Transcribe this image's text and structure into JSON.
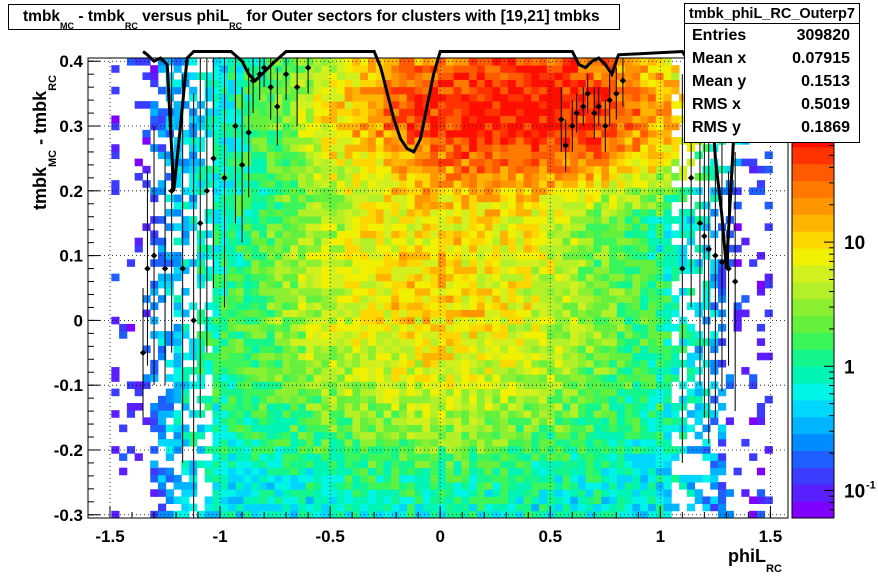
{
  "chart_data": {
    "type": "heatmap",
    "title_parts": [
      "tmbk",
      "MC",
      " - tmbk",
      "RC",
      " versus phiL",
      "RC",
      " for Outer sectors for clusters with [19,21] tmbks"
    ],
    "xlabel": "phiL",
    "xlabel_sub": "RC",
    "ylabel": "tmbk",
    "ylabel_sub1": "MC",
    "ylabel_mid": " - tmbk",
    "ylabel_sub2": "RC",
    "xlim": [
      -1.6,
      1.58
    ],
    "ylim": [
      -0.305,
      0.405
    ],
    "x_ticks": [
      "-1.5",
      "-1",
      "-0.5",
      "0",
      "0.5",
      "1",
      "1.5"
    ],
    "x_tick_values": [
      -1.5,
      -1,
      -0.5,
      0,
      0.5,
      1,
      1.5
    ],
    "y_ticks": [
      "-0.3",
      "-0.2",
      "-0.1",
      "0",
      "0.1",
      "0.2",
      "0.3",
      "0.4"
    ],
    "y_tick_values": [
      -0.3,
      -0.2,
      -0.1,
      0,
      0.1,
      0.2,
      0.3,
      0.4
    ],
    "grid": true,
    "colorbar": {
      "scale": "log",
      "labels": [
        "10",
        "1",
        "10"
      ],
      "label_values": [
        10,
        1,
        0.1
      ],
      "last_label_exponent": "-1",
      "range": [
        0.06,
        80
      ]
    },
    "stats": {
      "name": "tmbk_phiL_RC_Outerp7",
      "rows": [
        {
          "label": "Entries",
          "value": "309820"
        },
        {
          "label": "Mean x",
          "value": "0.07915"
        },
        {
          "label": "Mean y",
          "value": "0.1513"
        },
        {
          "label": "RMS x",
          "value": "0.5019"
        },
        {
          "label": "RMS y",
          "value": "0.1869"
        }
      ]
    },
    "fit_curve": {
      "x": [
        -1.35,
        -1.33,
        -1.3,
        -1.27,
        -1.24,
        -1.21,
        -1.18,
        -1.15,
        -1.12,
        -1.09,
        -0.95,
        -0.9,
        -0.87,
        -0.84,
        -0.75,
        -0.7,
        -0.3,
        -0.27,
        -0.24,
        -0.21,
        -0.18,
        -0.15,
        -0.12,
        -0.09,
        -0.06,
        -0.03,
        0,
        0.6,
        0.63,
        0.66,
        0.69,
        0.72,
        0.75,
        0.78,
        0.81,
        1.1,
        1.13,
        1.16,
        1.19,
        1.22,
        1.25,
        1.28,
        1.3,
        1.32,
        1.34,
        1.36
      ],
      "y": [
        0.42,
        0.41,
        0.4,
        0.405,
        0.395,
        0.2,
        0.3,
        0.405,
        0.42,
        0.42,
        0.42,
        0.4,
        0.38,
        0.37,
        0.4,
        0.42,
        0.42,
        0.39,
        0.35,
        0.31,
        0.28,
        0.265,
        0.26,
        0.28,
        0.33,
        0.38,
        0.42,
        0.42,
        0.395,
        0.39,
        0.4,
        0.405,
        0.395,
        0.38,
        0.41,
        0.42,
        0.4,
        0.39,
        0.41,
        0.405,
        0.25,
        0.16,
        0.08,
        0.2,
        0.33,
        0.42
      ]
    },
    "profile_points": {
      "x": [
        -1.35,
        -1.33,
        -1.3,
        -1.25,
        -1.22,
        -1.17,
        -1.12,
        -1.09,
        -1.06,
        -1.03,
        -0.98,
        -0.93,
        -0.9,
        -0.87,
        -0.85,
        -0.82,
        -0.8,
        -0.77,
        -0.74,
        -0.7,
        -0.65,
        -0.6,
        0.55,
        0.57,
        0.6,
        0.62,
        0.65,
        0.67,
        0.7,
        0.72,
        0.75,
        0.77,
        0.8,
        0.83,
        1.1,
        1.14,
        1.18,
        1.2,
        1.22,
        1.25,
        1.28,
        1.31,
        1.34
      ],
      "y": [
        -0.05,
        0.08,
        0.1,
        0.08,
        0.2,
        0.08,
        0.0,
        0.15,
        0.2,
        0.25,
        0.22,
        0.3,
        0.24,
        0.29,
        0.37,
        0.38,
        0.39,
        0.36,
        0.33,
        0.38,
        0.36,
        0.39,
        0.31,
        0.27,
        0.3,
        0.32,
        0.33,
        0.35,
        0.32,
        0.33,
        0.3,
        0.34,
        0.35,
        0.37,
        0.08,
        0.22,
        0.15,
        0.13,
        0.11,
        0.1,
        0.09,
        0.08,
        0.06
      ],
      "err": [
        0.1,
        0.15,
        0.2,
        0.18,
        0.25,
        0.3,
        0.35,
        0.3,
        0.25,
        0.2,
        0.2,
        0.15,
        0.12,
        0.1,
        0.05,
        0.04,
        0.03,
        0.05,
        0.06,
        0.04,
        0.06,
        0.04,
        0.05,
        0.04,
        0.04,
        0.03,
        0.03,
        0.03,
        0.04,
        0.03,
        0.04,
        0.04,
        0.04,
        0.04,
        0.3,
        0.2,
        0.25,
        0.28,
        0.3,
        0.25,
        0.2,
        0.15,
        0.2
      ]
    }
  }
}
